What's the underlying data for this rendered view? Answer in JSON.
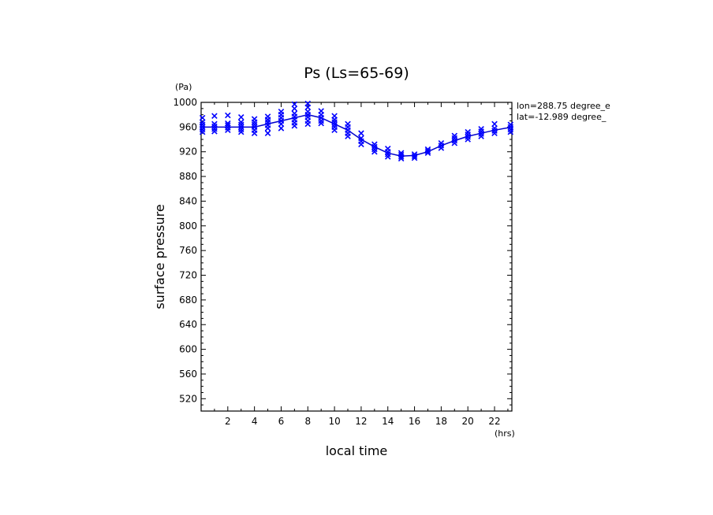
{
  "chart_data": {
    "type": "line",
    "title": "Ps (Ls=65-69)",
    "xlabel": "local time",
    "ylabel": "surface pressure",
    "x_unit": "(hrs)",
    "y_unit": "(Pa)",
    "xlim": [
      0,
      23.3
    ],
    "ylim": [
      500,
      1000
    ],
    "x_ticks": [
      2,
      4,
      6,
      8,
      10,
      12,
      14,
      16,
      18,
      20,
      22
    ],
    "y_ticks": [
      520,
      560,
      600,
      640,
      680,
      720,
      760,
      800,
      840,
      880,
      920,
      960,
      1000
    ],
    "annotations": [
      "lon=288.75 degree_e",
      "lat=-12.989 degree_"
    ],
    "line_color": "#0000cc",
    "marker_color": "#0000ff",
    "series": [
      {
        "type": "line",
        "x": [
          0,
          1,
          2,
          3,
          4,
          5,
          6,
          7,
          8,
          9,
          10,
          11,
          12,
          13,
          14,
          15,
          16,
          17,
          18,
          19,
          20,
          21,
          22,
          23.3
        ],
        "y": [
          960,
          960,
          960,
          960,
          960,
          965,
          970,
          975,
          980,
          975,
          965,
          955,
          940,
          928,
          918,
          913,
          914,
          920,
          930,
          938,
          945,
          950,
          955,
          960
        ]
      },
      {
        "type": "scatter",
        "marker": "x",
        "points": [
          [
            0.1,
            952
          ],
          [
            0.1,
            956
          ],
          [
            0.1,
            960
          ],
          [
            0.1,
            964
          ],
          [
            0.1,
            968
          ],
          [
            0.1,
            975
          ],
          [
            1,
            953
          ],
          [
            1,
            957
          ],
          [
            1,
            961
          ],
          [
            1,
            965
          ],
          [
            1,
            978
          ],
          [
            2,
            955
          ],
          [
            2,
            959
          ],
          [
            2,
            963
          ],
          [
            2,
            966
          ],
          [
            2,
            979
          ],
          [
            3,
            952
          ],
          [
            3,
            956
          ],
          [
            3,
            960
          ],
          [
            3,
            964
          ],
          [
            3,
            968
          ],
          [
            3,
            976
          ],
          [
            4,
            950
          ],
          [
            4,
            955
          ],
          [
            4,
            960
          ],
          [
            4,
            964
          ],
          [
            4,
            968
          ],
          [
            4,
            973
          ],
          [
            5,
            950
          ],
          [
            5,
            958
          ],
          [
            5,
            963
          ],
          [
            5,
            968
          ],
          [
            5,
            972
          ],
          [
            5,
            977
          ],
          [
            6,
            958
          ],
          [
            6,
            965
          ],
          [
            6,
            970
          ],
          [
            6,
            975
          ],
          [
            6,
            980
          ],
          [
            6,
            985
          ],
          [
            7,
            962
          ],
          [
            7,
            967
          ],
          [
            7,
            972
          ],
          [
            7,
            977
          ],
          [
            7,
            982
          ],
          [
            7,
            990
          ],
          [
            7,
            997
          ],
          [
            8,
            965
          ],
          [
            8,
            970
          ],
          [
            8,
            976
          ],
          [
            8,
            980
          ],
          [
            8,
            985
          ],
          [
            8,
            992
          ],
          [
            8,
            998
          ],
          [
            9,
            966
          ],
          [
            9,
            970
          ],
          [
            9,
            975
          ],
          [
            9,
            980
          ],
          [
            9,
            986
          ],
          [
            10,
            955
          ],
          [
            10,
            960
          ],
          [
            10,
            964
          ],
          [
            10,
            968
          ],
          [
            10,
            972
          ],
          [
            10,
            978
          ],
          [
            11,
            945
          ],
          [
            11,
            950
          ],
          [
            11,
            955
          ],
          [
            11,
            960
          ],
          [
            11,
            965
          ],
          [
            12,
            932
          ],
          [
            12,
            937
          ],
          [
            12,
            942
          ],
          [
            12,
            950
          ],
          [
            13,
            920
          ],
          [
            13,
            924
          ],
          [
            13,
            928
          ],
          [
            13,
            932
          ],
          [
            14,
            912
          ],
          [
            14,
            916
          ],
          [
            14,
            920
          ],
          [
            14,
            925
          ],
          [
            15,
            909
          ],
          [
            15,
            912
          ],
          [
            15,
            915
          ],
          [
            15,
            918
          ],
          [
            16,
            910
          ],
          [
            16,
            913
          ],
          [
            16,
            916
          ],
          [
            17,
            918
          ],
          [
            17,
            921
          ],
          [
            17,
            924
          ],
          [
            18,
            926
          ],
          [
            18,
            930
          ],
          [
            18,
            934
          ],
          [
            19,
            934
          ],
          [
            19,
            938
          ],
          [
            19,
            942
          ],
          [
            19,
            946
          ],
          [
            20,
            940
          ],
          [
            20,
            944
          ],
          [
            20,
            948
          ],
          [
            20,
            952
          ],
          [
            21,
            945
          ],
          [
            21,
            949
          ],
          [
            21,
            953
          ],
          [
            21,
            957
          ],
          [
            22,
            950
          ],
          [
            22,
            954
          ],
          [
            22,
            958
          ],
          [
            22,
            965
          ],
          [
            23.2,
            952
          ],
          [
            23.2,
            956
          ],
          [
            23.2,
            960
          ],
          [
            23.2,
            964
          ]
        ]
      }
    ]
  }
}
